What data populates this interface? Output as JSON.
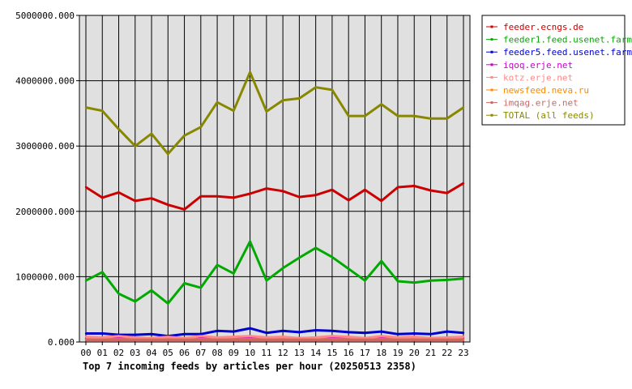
{
  "chart_data": {
    "type": "line",
    "title": "Top 7 incoming feeds by articles per hour (20250513 2358)",
    "xlabel": "",
    "ylabel": "",
    "categories": [
      "00",
      "01",
      "02",
      "03",
      "04",
      "05",
      "06",
      "07",
      "08",
      "09",
      "10",
      "11",
      "12",
      "13",
      "14",
      "15",
      "16",
      "17",
      "18",
      "19",
      "20",
      "21",
      "22",
      "23"
    ],
    "y_ticks": [
      "0.000",
      "1000000.000",
      "2000000.000",
      "3000000.000",
      "4000000.000",
      "5000000.000"
    ],
    "ylim": [
      0,
      5000000
    ],
    "grid": true,
    "legend_position": "right",
    "series": [
      {
        "name": "feeder.ecngs.de",
        "color": "#cc0000",
        "values": [
          2370000,
          2210000,
          2290000,
          2160000,
          2200000,
          2100000,
          2030000,
          2230000,
          2230000,
          2210000,
          2270000,
          2350000,
          2310000,
          2220000,
          2250000,
          2330000,
          2170000,
          2330000,
          2160000,
          2370000,
          2390000,
          2320000,
          2280000,
          2430000
        ]
      },
      {
        "name": "feeder1.feed.usenet.farm",
        "color": "#00aa00",
        "values": [
          940000,
          1070000,
          740000,
          620000,
          790000,
          590000,
          900000,
          830000,
          1180000,
          1050000,
          1540000,
          940000,
          1130000,
          1290000,
          1440000,
          1300000,
          1120000,
          940000,
          1240000,
          930000,
          910000,
          940000,
          950000,
          970000
        ]
      },
      {
        "name": "feeder5.feed.usenet.farm",
        "color": "#0000cc",
        "values": [
          130000,
          130000,
          110000,
          110000,
          120000,
          90000,
          120000,
          120000,
          170000,
          160000,
          210000,
          140000,
          170000,
          150000,
          180000,
          170000,
          150000,
          140000,
          160000,
          120000,
          130000,
          120000,
          160000,
          140000
        ]
      },
      {
        "name": "iqoq.erje.net",
        "color": "#cc00cc",
        "values": [
          60000,
          60000,
          60000,
          60000,
          60000,
          60000,
          60000,
          60000,
          60000,
          60000,
          60000,
          60000,
          60000,
          60000,
          60000,
          60000,
          60000,
          60000,
          60000,
          60000,
          60000,
          60000,
          60000,
          60000
        ]
      },
      {
        "name": "kotz.erje.net",
        "color": "#ff8888",
        "values": [
          80000,
          70000,
          90000,
          70000,
          60000,
          80000,
          60000,
          90000,
          70000,
          80000,
          90000,
          70000,
          80000,
          60000,
          70000,
          90000,
          80000,
          60000,
          90000,
          70000,
          80000,
          60000,
          70000,
          80000
        ]
      },
      {
        "name": "newsfeed.neva.ru",
        "color": "#ff8800",
        "values": [
          40000,
          40000,
          40000,
          40000,
          40000,
          40000,
          40000,
          40000,
          40000,
          40000,
          40000,
          40000,
          40000,
          40000,
          40000,
          40000,
          40000,
          40000,
          40000,
          40000,
          40000,
          40000,
          40000,
          40000
        ]
      },
      {
        "name": "imqag.erje.net",
        "color": "#cc6666",
        "values": [
          30000,
          30000,
          30000,
          30000,
          30000,
          30000,
          30000,
          30000,
          30000,
          30000,
          30000,
          30000,
          30000,
          30000,
          30000,
          30000,
          30000,
          30000,
          30000,
          30000,
          30000,
          30000,
          30000,
          30000
        ]
      },
      {
        "name": "TOTAL (all feeds)",
        "color": "#888800",
        "values": [
          3590000,
          3540000,
          3260000,
          3000000,
          3190000,
          2880000,
          3160000,
          3290000,
          3670000,
          3540000,
          4130000,
          3530000,
          3700000,
          3730000,
          3900000,
          3860000,
          3460000,
          3460000,
          3640000,
          3460000,
          3460000,
          3420000,
          3420000,
          3590000
        ]
      }
    ]
  }
}
